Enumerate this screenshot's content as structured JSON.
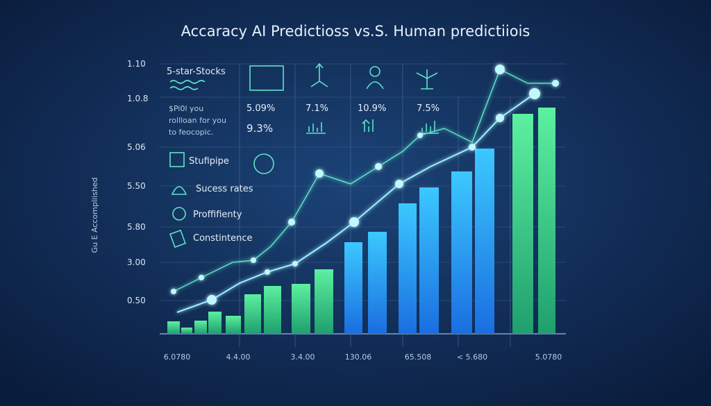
{
  "title": "Accaracy AI Predictioss vs.S. Human predictiiois",
  "axis_title": "Gu E Accompliished",
  "y_labels": [
    "1.10",
    "1.0.8",
    "5.06",
    "5.50",
    "5.80",
    "3.00",
    "0.50"
  ],
  "x_labels": [
    "6.0780",
    "4.4.00",
    "3.4.00",
    "130.06",
    "65.508",
    "< 5.680",
    "5.0780"
  ],
  "panel": {
    "heading": "5-star-Stocks",
    "note": [
      "$Pi0l you",
      "rollloan for you",
      "to feocopic."
    ],
    "stats": [
      "5.09%",
      "9.3%",
      "7.1%",
      "10.9%",
      "7.5%"
    ]
  },
  "legend": [
    "Stufipipe",
    "Sucess rates",
    "Proffifienty",
    "Constintence"
  ]
}
